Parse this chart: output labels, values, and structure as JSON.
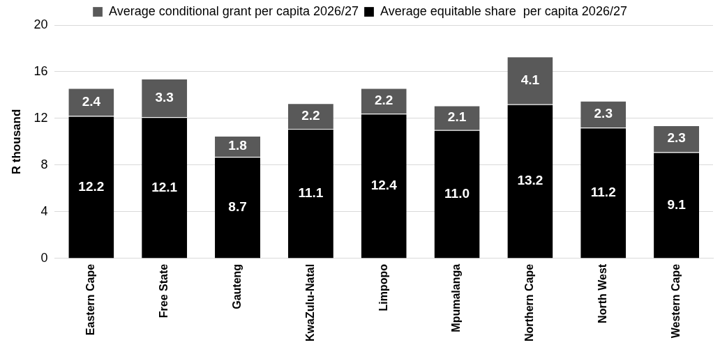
{
  "chart_data": {
    "type": "bar",
    "stacked": true,
    "ylabel": "R thousand",
    "categories": [
      "Eastern Cape",
      "Free State",
      "Gauteng",
      "KwaZulu-Natal",
      "Limpopo",
      "Mpumalanga",
      "Northern Cape",
      "North West",
      "Western Cape"
    ],
    "series": [
      {
        "name": "Average equitable share  per capita 2026/27",
        "color": "#000000",
        "values": [
          12.2,
          12.1,
          8.7,
          11.1,
          12.4,
          11.0,
          13.2,
          11.2,
          9.1
        ],
        "value_labels": [
          "12.2",
          "12.1",
          "8.7",
          "11.1",
          "12.4",
          "11.0",
          "13.2",
          "11.2",
          "9.1"
        ]
      },
      {
        "name": "Average conditional grant per capita 2026/27",
        "color": "#595959",
        "values": [
          2.4,
          3.3,
          1.8,
          2.2,
          2.2,
          2.1,
          4.1,
          2.3,
          2.3
        ],
        "value_labels": [
          "2.4",
          "3.3",
          "1.8",
          "2.2",
          "2.2",
          "2.1",
          "4.1",
          "2.3",
          "2.3"
        ]
      }
    ],
    "ylim": [
      0,
      20
    ],
    "yticks": [
      0,
      4,
      8,
      12,
      16,
      20
    ],
    "grid": "y",
    "legend": "top"
  }
}
